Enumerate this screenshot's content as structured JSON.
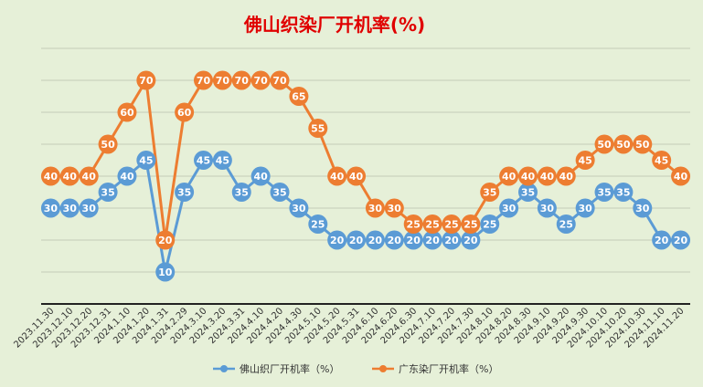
{
  "chart_data": {
    "type": "line",
    "title": "佛山织染厂开机率(%)",
    "title_color": "#e00000",
    "categories": [
      "2023.11.30",
      "2023.12.10",
      "2023.12.20",
      "2023.12.31",
      "2024.1.10",
      "2024.1.20",
      "2024.1.31",
      "2024.2.29",
      "2024.3.10",
      "2024.3.20",
      "2024.3.31",
      "2024.4.10",
      "2024.4.20",
      "2024.4.30",
      "2024.5.10",
      "2024.5.20",
      "2024.5.31",
      "2024.6.10",
      "2024.6.20",
      "2024.6.30",
      "2024.7.10",
      "2024.7.20",
      "2024.7.30",
      "2024.8.10",
      "2024.8.20",
      "2024.8.30",
      "2024.9.10",
      "2024.9.20",
      "2024.9.30",
      "2024.10.10",
      "2024.10.20",
      "2024.10.30",
      "2024.11.10",
      "2024.11.20"
    ],
    "ylim": [
      0,
      80
    ],
    "grid": true,
    "legend_position": "bottom",
    "series": [
      {
        "name": "佛山织厂开机率（%）",
        "color": "#5b9bd5",
        "values": [
          30,
          30,
          30,
          35,
          40,
          45,
          10,
          35,
          45,
          45,
          35,
          40,
          35,
          30,
          25,
          20,
          20,
          20,
          20,
          20,
          20,
          20,
          20,
          25,
          30,
          35,
          30,
          25,
          30,
          35,
          35,
          30,
          20,
          20
        ]
      },
      {
        "name": "广东染厂开机率（%）",
        "color": "#ed7d31",
        "values": [
          40,
          40,
          40,
          50,
          60,
          70,
          20,
          60,
          70,
          70,
          70,
          70,
          70,
          65,
          55,
          40,
          40,
          30,
          30,
          25,
          25,
          25,
          25,
          35,
          40,
          40,
          40,
          40,
          45,
          50,
          50,
          50,
          45,
          40
        ]
      }
    ]
  }
}
